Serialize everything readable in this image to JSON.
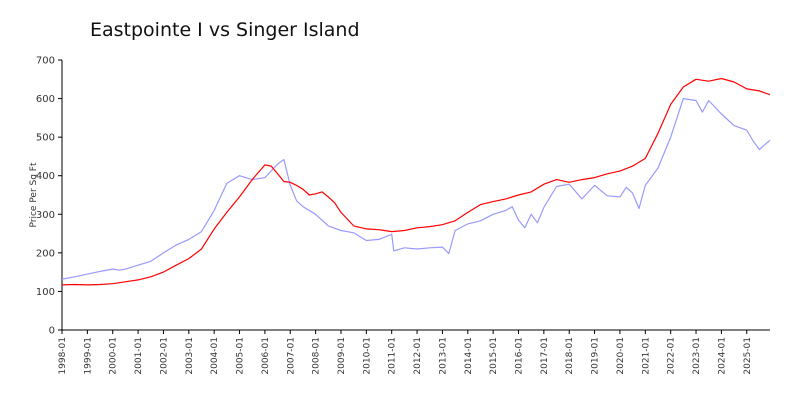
{
  "chart_data": {
    "type": "line",
    "title": "Eastpointe I vs Singer Island",
    "xlabel": "",
    "ylabel": "Price Per Sq Ft",
    "ylim": [
      0,
      700
    ],
    "yticks": [
      0,
      100,
      200,
      300,
      400,
      500,
      600,
      700
    ],
    "xlim": [
      "1998-01",
      "2025-12"
    ],
    "xticks": [
      "1998-01",
      "1999-01",
      "2000-01",
      "2001-01",
      "2002-01",
      "2003-01",
      "2004-01",
      "2005-01",
      "2006-01",
      "2007-01",
      "2008-01",
      "2009-01",
      "2010-01",
      "2011-01",
      "2012-01",
      "2013-01",
      "2014-01",
      "2015-01",
      "2016-01",
      "2017-01",
      "2018-01",
      "2019-01",
      "2020-01",
      "2021-01",
      "2022-01",
      "2023-01",
      "2024-01",
      "2025-01"
    ],
    "grid": false,
    "legend": "none",
    "series": [
      {
        "color": "#ff0000",
        "points": [
          [
            "1998-01",
            117
          ],
          [
            "1998-07",
            118
          ],
          [
            "1999-01",
            117
          ],
          [
            "1999-07",
            118
          ],
          [
            "2000-01",
            120
          ],
          [
            "2000-07",
            125
          ],
          [
            "2001-01",
            130
          ],
          [
            "2001-07",
            138
          ],
          [
            "2002-01",
            150
          ],
          [
            "2002-07",
            168
          ],
          [
            "2003-01",
            185
          ],
          [
            "2003-07",
            210
          ],
          [
            "2004-01",
            262
          ],
          [
            "2004-07",
            305
          ],
          [
            "2005-01",
            345
          ],
          [
            "2005-07",
            390
          ],
          [
            "2006-01",
            428
          ],
          [
            "2006-04",
            425
          ],
          [
            "2006-07",
            405
          ],
          [
            "2006-10",
            385
          ],
          [
            "2007-01",
            383
          ],
          [
            "2007-04",
            375
          ],
          [
            "2007-07",
            365
          ],
          [
            "2007-10",
            350
          ],
          [
            "2008-01",
            353
          ],
          [
            "2008-04",
            358
          ],
          [
            "2008-07",
            345
          ],
          [
            "2008-10",
            330
          ],
          [
            "2009-01",
            305
          ],
          [
            "2009-07",
            270
          ],
          [
            "2010-01",
            262
          ],
          [
            "2010-07",
            260
          ],
          [
            "2011-01",
            255
          ],
          [
            "2011-07",
            258
          ],
          [
            "2012-01",
            265
          ],
          [
            "2012-07",
            268
          ],
          [
            "2013-01",
            273
          ],
          [
            "2013-07",
            283
          ],
          [
            "2014-01",
            305
          ],
          [
            "2014-07",
            325
          ],
          [
            "2015-01",
            333
          ],
          [
            "2015-07",
            340
          ],
          [
            "2016-01",
            350
          ],
          [
            "2016-07",
            358
          ],
          [
            "2017-01",
            378
          ],
          [
            "2017-07",
            390
          ],
          [
            "2018-01",
            383
          ],
          [
            "2018-07",
            390
          ],
          [
            "2019-01",
            395
          ],
          [
            "2019-07",
            405
          ],
          [
            "2020-01",
            412
          ],
          [
            "2020-07",
            425
          ],
          [
            "2021-01",
            445
          ],
          [
            "2021-07",
            510
          ],
          [
            "2022-01",
            585
          ],
          [
            "2022-07",
            630
          ],
          [
            "2023-01",
            650
          ],
          [
            "2023-07",
            645
          ],
          [
            "2024-01",
            652
          ],
          [
            "2024-07",
            643
          ],
          [
            "2025-01",
            625
          ],
          [
            "2025-07",
            620
          ],
          [
            "2025-12",
            610
          ]
        ]
      },
      {
        "color": "#9999ff",
        "points": [
          [
            "1998-01",
            132
          ],
          [
            "1998-07",
            138
          ],
          [
            "1999-01",
            145
          ],
          [
            "1999-07",
            152
          ],
          [
            "2000-01",
            158
          ],
          [
            "2000-04",
            155
          ],
          [
            "2000-07",
            158
          ],
          [
            "2001-01",
            168
          ],
          [
            "2001-07",
            178
          ],
          [
            "2002-01",
            200
          ],
          [
            "2002-07",
            220
          ],
          [
            "2003-01",
            235
          ],
          [
            "2003-07",
            255
          ],
          [
            "2004-01",
            310
          ],
          [
            "2004-07",
            380
          ],
          [
            "2005-01",
            400
          ],
          [
            "2005-07",
            390
          ],
          [
            "2006-01",
            395
          ],
          [
            "2006-07",
            430
          ],
          [
            "2006-10",
            442
          ],
          [
            "2007-01",
            375
          ],
          [
            "2007-04",
            335
          ],
          [
            "2007-07",
            320
          ],
          [
            "2008-01",
            300
          ],
          [
            "2008-07",
            270
          ],
          [
            "2009-01",
            258
          ],
          [
            "2009-07",
            252
          ],
          [
            "2010-01",
            232
          ],
          [
            "2010-07",
            235
          ],
          [
            "2011-01",
            248
          ],
          [
            "2011-02",
            205
          ],
          [
            "2011-07",
            213
          ],
          [
            "2012-01",
            210
          ],
          [
            "2012-07",
            213
          ],
          [
            "2013-01",
            215
          ],
          [
            "2013-04",
            198
          ],
          [
            "2013-07",
            258
          ],
          [
            "2014-01",
            275
          ],
          [
            "2014-07",
            283
          ],
          [
            "2015-01",
            300
          ],
          [
            "2015-07",
            310
          ],
          [
            "2015-10",
            320
          ],
          [
            "2016-01",
            285
          ],
          [
            "2016-04",
            265
          ],
          [
            "2016-07",
            300
          ],
          [
            "2016-10",
            278
          ],
          [
            "2017-01",
            318
          ],
          [
            "2017-07",
            372
          ],
          [
            "2018-01",
            378
          ],
          [
            "2018-07",
            340
          ],
          [
            "2019-01",
            375
          ],
          [
            "2019-07",
            348
          ],
          [
            "2020-01",
            345
          ],
          [
            "2020-04",
            370
          ],
          [
            "2020-07",
            355
          ],
          [
            "2020-10",
            315
          ],
          [
            "2021-01",
            375
          ],
          [
            "2021-07",
            420
          ],
          [
            "2022-01",
            500
          ],
          [
            "2022-04",
            550
          ],
          [
            "2022-07",
            600
          ],
          [
            "2023-01",
            595
          ],
          [
            "2023-04",
            565
          ],
          [
            "2023-07",
            595
          ],
          [
            "2024-01",
            560
          ],
          [
            "2024-07",
            530
          ],
          [
            "2025-01",
            518
          ],
          [
            "2025-04",
            490
          ],
          [
            "2025-07",
            468
          ],
          [
            "2025-12",
            492
          ]
        ]
      }
    ]
  }
}
